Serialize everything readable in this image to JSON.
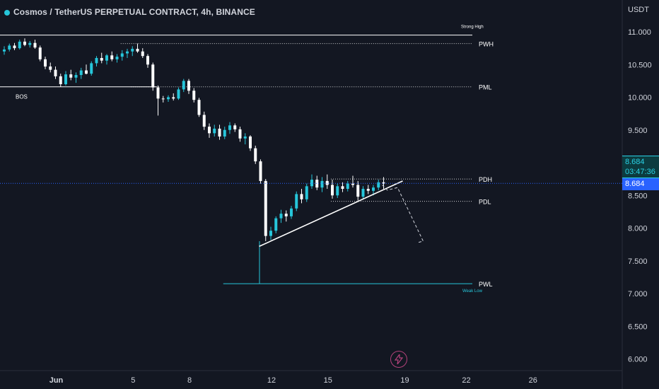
{
  "header": {
    "title": "Cosmos / TetherUS PERPETUAL CONTRACT, 4h, BINANCE"
  },
  "price_axis": {
    "unit": "USDT",
    "last_price": "8.684",
    "countdown": "03:47:36",
    "current_price": "8.684"
  },
  "colors": {
    "background": "#131722",
    "up_candle": "#26c6da",
    "down_candle": "#ffffff",
    "level_line": "#ffffff",
    "weak_low_line": "#26c6da",
    "current_price_line": "#2962ff"
  },
  "chart_data": {
    "type": "candlestick",
    "symbol": "Cosmos / TetherUS PERPETUAL CONTRACT",
    "interval": "4h",
    "exchange": "BINANCE",
    "y_ticks": [
      "11.000",
      "10.500",
      "10.000",
      "9.500",
      "9.000",
      "8.500",
      "8.000",
      "7.500",
      "7.000",
      "6.500",
      "6.000"
    ],
    "y_tick_values": [
      11.0,
      10.5,
      10.0,
      9.5,
      9.0,
      8.5,
      8.0,
      7.5,
      7.0,
      6.5,
      6.0
    ],
    "ylim": [
      5.85,
      11.5
    ],
    "x_ticks": [
      "Jun",
      "5",
      "8",
      "12",
      "15",
      "19",
      "22",
      "26"
    ],
    "x_tick_index": [
      10,
      25,
      36,
      52,
      63,
      78,
      90,
      103
    ],
    "levels": [
      {
        "label": "PWH",
        "value": 10.82,
        "style": "dotted",
        "start_index": 23
      },
      {
        "label": "PML",
        "value": 10.16,
        "style": "dotted",
        "start_index": 25
      },
      {
        "label": "PDH",
        "value": 8.75,
        "style": "dotted",
        "start_index": 64
      },
      {
        "label": "PDL",
        "value": 8.41,
        "style": "dotted",
        "start_index": 64
      },
      {
        "label": "PWL",
        "value": 7.15,
        "style": "solid-cyan",
        "start_index": 43
      }
    ],
    "annotations": [
      {
        "text": "Strong High",
        "value": 10.95
      },
      {
        "text": "Weak Low",
        "value": 7.15
      },
      {
        "text": "BOS",
        "value": 10.16
      }
    ],
    "candles": [
      [
        10.7,
        10.78,
        10.65,
        10.73
      ],
      [
        10.73,
        10.82,
        10.7,
        10.79
      ],
      [
        10.79,
        10.83,
        10.72,
        10.75
      ],
      [
        10.75,
        10.88,
        10.73,
        10.85
      ],
      [
        10.85,
        10.9,
        10.78,
        10.8
      ],
      [
        10.8,
        10.86,
        10.76,
        10.83
      ],
      [
        10.83,
        10.88,
        10.74,
        10.76
      ],
      [
        10.76,
        10.79,
        10.55,
        10.58
      ],
      [
        10.58,
        10.62,
        10.43,
        10.47
      ],
      [
        10.47,
        10.53,
        10.38,
        10.42
      ],
      [
        10.42,
        10.47,
        10.28,
        10.32
      ],
      [
        10.32,
        10.36,
        10.16,
        10.2
      ],
      [
        10.2,
        10.4,
        10.18,
        10.35
      ],
      [
        10.35,
        10.42,
        10.26,
        10.3
      ],
      [
        10.3,
        10.38,
        10.22,
        10.34
      ],
      [
        10.34,
        10.45,
        10.28,
        10.41
      ],
      [
        10.41,
        10.5,
        10.35,
        10.36
      ],
      [
        10.36,
        10.55,
        10.33,
        10.52
      ],
      [
        10.52,
        10.63,
        10.47,
        10.6
      ],
      [
        10.6,
        10.68,
        10.52,
        10.56
      ],
      [
        10.56,
        10.66,
        10.5,
        10.64
      ],
      [
        10.64,
        10.7,
        10.55,
        10.58
      ],
      [
        10.58,
        10.66,
        10.53,
        10.62
      ],
      [
        10.62,
        10.72,
        10.56,
        10.67
      ],
      [
        10.67,
        10.74,
        10.6,
        10.7
      ],
      [
        10.7,
        10.78,
        10.63,
        10.74
      ],
      [
        10.74,
        10.82,
        10.68,
        10.7
      ],
      [
        10.7,
        10.75,
        10.6,
        10.63
      ],
      [
        10.63,
        10.66,
        10.45,
        10.5
      ],
      [
        10.5,
        10.53,
        10.1,
        10.15
      ],
      [
        10.15,
        10.18,
        9.72,
        9.98
      ],
      [
        9.98,
        10.02,
        9.92,
        9.97
      ],
      [
        9.97,
        10.03,
        9.93,
        10.0
      ],
      [
        10.0,
        10.06,
        9.95,
        9.98
      ],
      [
        9.98,
        10.15,
        9.96,
        10.12
      ],
      [
        10.12,
        10.28,
        10.08,
        10.25
      ],
      [
        10.25,
        10.28,
        10.05,
        10.1
      ],
      [
        10.1,
        10.14,
        9.92,
        9.96
      ],
      [
        9.96,
        9.99,
        9.7,
        9.73
      ],
      [
        9.73,
        9.78,
        9.5,
        9.55
      ],
      [
        9.55,
        9.6,
        9.38,
        9.45
      ],
      [
        9.45,
        9.58,
        9.4,
        9.52
      ],
      [
        9.52,
        9.58,
        9.35,
        9.4
      ],
      [
        9.4,
        9.55,
        9.36,
        9.5
      ],
      [
        9.5,
        9.62,
        9.44,
        9.57
      ],
      [
        9.57,
        9.6,
        9.47,
        9.51
      ],
      [
        9.51,
        9.55,
        9.32,
        9.37
      ],
      [
        9.37,
        9.45,
        9.28,
        9.4
      ],
      [
        9.4,
        9.42,
        9.18,
        9.22
      ],
      [
        9.22,
        9.26,
        8.98,
        9.02
      ],
      [
        9.02,
        9.05,
        8.68,
        8.72
      ],
      [
        8.72,
        8.75,
        7.8,
        7.88
      ],
      [
        7.88,
        8.02,
        7.82,
        7.96
      ],
      [
        7.96,
        8.18,
        7.92,
        8.15
      ],
      [
        8.15,
        8.28,
        8.08,
        8.22
      ],
      [
        8.22,
        8.27,
        8.1,
        8.18
      ],
      [
        8.18,
        8.34,
        8.14,
        8.3
      ],
      [
        8.3,
        8.56,
        8.26,
        8.52
      ],
      [
        8.52,
        8.6,
        8.38,
        8.44
      ],
      [
        8.44,
        8.68,
        8.4,
        8.64
      ],
      [
        8.64,
        8.82,
        8.6,
        8.74
      ],
      [
        8.74,
        8.8,
        8.58,
        8.62
      ],
      [
        8.62,
        8.78,
        8.55,
        8.72
      ],
      [
        8.72,
        8.82,
        8.6,
        8.66
      ],
      [
        8.66,
        8.74,
        8.45,
        8.5
      ],
      [
        8.5,
        8.68,
        8.46,
        8.64
      ],
      [
        8.64,
        8.7,
        8.55,
        8.6
      ],
      [
        8.6,
        8.72,
        8.56,
        8.68
      ],
      [
        8.68,
        8.8,
        8.62,
        8.66
      ],
      [
        8.66,
        8.72,
        8.42,
        8.48
      ],
      [
        8.48,
        8.64,
        8.44,
        8.6
      ],
      [
        8.6,
        8.66,
        8.52,
        8.57
      ],
      [
        8.57,
        8.66,
        8.5,
        8.62
      ],
      [
        8.62,
        8.74,
        8.58,
        8.7
      ],
      [
        8.7,
        8.78,
        8.6,
        8.68
      ]
    ],
    "drawings": [
      {
        "type": "trendline",
        "from": [
          50,
          7.72
        ],
        "to": [
          78,
          8.72
        ],
        "color": "#ffffff"
      },
      {
        "type": "projection",
        "points": [
          [
            74,
            8.66
          ],
          [
            75,
            8.58
          ],
          [
            77,
            8.62
          ],
          [
            82,
            7.8
          ],
          [
            81,
            7.78
          ]
        ],
        "style": "dashed"
      }
    ]
  }
}
